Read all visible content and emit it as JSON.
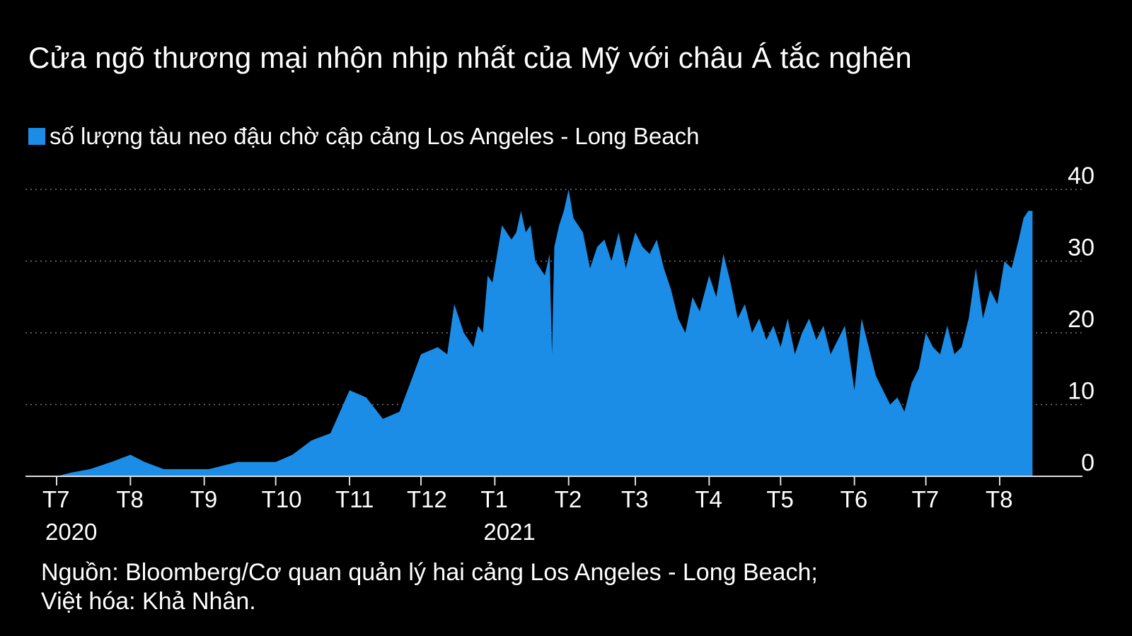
{
  "title": "Cửa ngõ thương mại nhộn nhịp nhất của Mỹ với châu Á tắc nghẽn",
  "colors": {
    "background": "#000000",
    "series": "#1b8de6",
    "text": "#ffffff",
    "grid": "#777777"
  },
  "source": {
    "line1": "Nguồn: Bloomberg/Cơ quan quản lý hai cảng Los Angeles - Long Beach;",
    "line2": "Việt hóa: Khả Nhân."
  },
  "chart_data": {
    "type": "area",
    "legend_position": "top-left",
    "grid": true,
    "ylim": [
      0,
      40
    ],
    "yticks": [
      0,
      10,
      20,
      30,
      40
    ],
    "xlim": [
      "2020-07-01",
      "2021-09-15"
    ],
    "xticks": [
      {
        "label": "T7",
        "date": "2020-07-01",
        "year": "2020"
      },
      {
        "label": "T8",
        "date": "2020-08-01"
      },
      {
        "label": "T9",
        "date": "2020-09-01"
      },
      {
        "label": "T10",
        "date": "2020-10-01"
      },
      {
        "label": "T11",
        "date": "2020-11-01"
      },
      {
        "label": "T12",
        "date": "2020-12-01"
      },
      {
        "label": "T1",
        "date": "2021-01-01",
        "year": "2021"
      },
      {
        "label": "T2",
        "date": "2021-02-01"
      },
      {
        "label": "T3",
        "date": "2021-03-01"
      },
      {
        "label": "T4",
        "date": "2021-04-01"
      },
      {
        "label": "T5",
        "date": "2021-05-01"
      },
      {
        "label": "T6",
        "date": "2021-06-01"
      },
      {
        "label": "T7",
        "date": "2021-07-01"
      },
      {
        "label": "T8",
        "date": "2021-08-01"
      }
    ],
    "series": [
      {
        "name": "số lượng tàu neo đậu chờ cập cảng Los Angeles - Long Beach",
        "points": [
          [
            "2020-07-01",
            0
          ],
          [
            "2020-07-07",
            0.5
          ],
          [
            "2020-07-15",
            1
          ],
          [
            "2020-07-24",
            2
          ],
          [
            "2020-08-01",
            3
          ],
          [
            "2020-08-07",
            2
          ],
          [
            "2020-08-15",
            1
          ],
          [
            "2020-08-26",
            1
          ],
          [
            "2020-09-03",
            1
          ],
          [
            "2020-09-15",
            2
          ],
          [
            "2020-10-01",
            2
          ],
          [
            "2020-10-08",
            3
          ],
          [
            "2020-10-16",
            5
          ],
          [
            "2020-10-24",
            6
          ],
          [
            "2020-11-01",
            12
          ],
          [
            "2020-11-08",
            11
          ],
          [
            "2020-11-15",
            8
          ],
          [
            "2020-11-22",
            9
          ],
          [
            "2020-12-01",
            17
          ],
          [
            "2020-12-08",
            18
          ],
          [
            "2020-12-12",
            17
          ],
          [
            "2020-12-15",
            24
          ],
          [
            "2020-12-19",
            20
          ],
          [
            "2020-12-23",
            18
          ],
          [
            "2020-12-25",
            21
          ],
          [
            "2020-12-27",
            20
          ],
          [
            "2020-12-29",
            28
          ],
          [
            "2020-12-31",
            27
          ],
          [
            "2021-01-02",
            31
          ],
          [
            "2021-01-04",
            35
          ],
          [
            "2021-01-06",
            34
          ],
          [
            "2021-01-08",
            33
          ],
          [
            "2021-01-10",
            34
          ],
          [
            "2021-01-12",
            37
          ],
          [
            "2021-01-14",
            34
          ],
          [
            "2021-01-16",
            35
          ],
          [
            "2021-01-18",
            30
          ],
          [
            "2021-01-20",
            29
          ],
          [
            "2021-01-22",
            28
          ],
          [
            "2021-01-24",
            31
          ],
          [
            "2021-01-25",
            17
          ],
          [
            "2021-01-26",
            32
          ],
          [
            "2021-01-28",
            35
          ],
          [
            "2021-01-30",
            37
          ],
          [
            "2021-02-01",
            40
          ],
          [
            "2021-02-03",
            36
          ],
          [
            "2021-02-05",
            35
          ],
          [
            "2021-02-07",
            34
          ],
          [
            "2021-02-10",
            29
          ],
          [
            "2021-02-13",
            32
          ],
          [
            "2021-02-16",
            33
          ],
          [
            "2021-02-19",
            30
          ],
          [
            "2021-02-22",
            34
          ],
          [
            "2021-02-25",
            29
          ],
          [
            "2021-03-01",
            34
          ],
          [
            "2021-03-04",
            32
          ],
          [
            "2021-03-07",
            31
          ],
          [
            "2021-03-10",
            33
          ],
          [
            "2021-03-13",
            29
          ],
          [
            "2021-03-16",
            26
          ],
          [
            "2021-03-19",
            22
          ],
          [
            "2021-03-22",
            20
          ],
          [
            "2021-03-25",
            25
          ],
          [
            "2021-03-28",
            23
          ],
          [
            "2021-04-01",
            28
          ],
          [
            "2021-04-04",
            25
          ],
          [
            "2021-04-07",
            31
          ],
          [
            "2021-04-10",
            27
          ],
          [
            "2021-04-13",
            22
          ],
          [
            "2021-04-16",
            24
          ],
          [
            "2021-04-19",
            20
          ],
          [
            "2021-04-22",
            22
          ],
          [
            "2021-04-25",
            19
          ],
          [
            "2021-04-28",
            21
          ],
          [
            "2021-05-01",
            18
          ],
          [
            "2021-05-04",
            22
          ],
          [
            "2021-05-07",
            17
          ],
          [
            "2021-05-10",
            20
          ],
          [
            "2021-05-13",
            22
          ],
          [
            "2021-05-16",
            19
          ],
          [
            "2021-05-19",
            21
          ],
          [
            "2021-05-22",
            17
          ],
          [
            "2021-05-25",
            19
          ],
          [
            "2021-05-28",
            21
          ],
          [
            "2021-06-01",
            12
          ],
          [
            "2021-06-04",
            22
          ],
          [
            "2021-06-07",
            18
          ],
          [
            "2021-06-10",
            14
          ],
          [
            "2021-06-13",
            12
          ],
          [
            "2021-06-16",
            10
          ],
          [
            "2021-06-19",
            11
          ],
          [
            "2021-06-22",
            9
          ],
          [
            "2021-06-25",
            13
          ],
          [
            "2021-06-28",
            15
          ],
          [
            "2021-07-01",
            20
          ],
          [
            "2021-07-04",
            18
          ],
          [
            "2021-07-07",
            17
          ],
          [
            "2021-07-10",
            21
          ],
          [
            "2021-07-13",
            17
          ],
          [
            "2021-07-16",
            18
          ],
          [
            "2021-07-19",
            22
          ],
          [
            "2021-07-22",
            29
          ],
          [
            "2021-07-25",
            22
          ],
          [
            "2021-07-28",
            26
          ],
          [
            "2021-07-31",
            24
          ],
          [
            "2021-08-03",
            30
          ],
          [
            "2021-08-06",
            29
          ],
          [
            "2021-08-09",
            33
          ],
          [
            "2021-08-11",
            36
          ],
          [
            "2021-08-13",
            37
          ]
        ]
      }
    ]
  }
}
